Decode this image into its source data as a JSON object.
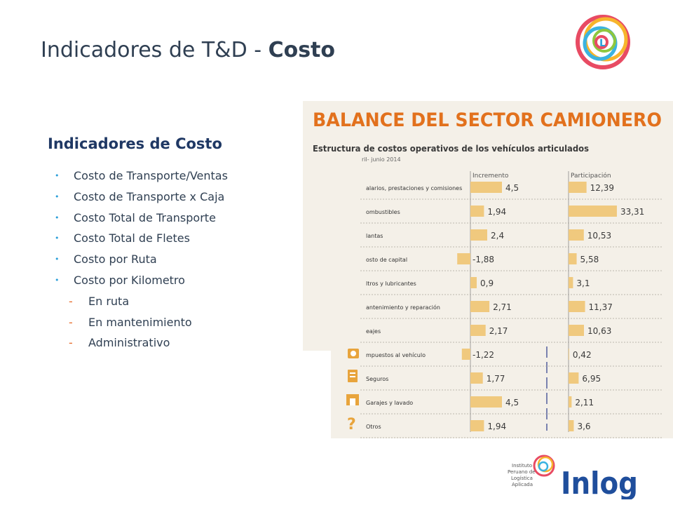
{
  "slide": {
    "title_regular": "Indicadores de T&D - ",
    "title_bold": "Costo",
    "section_heading": "Indicadores de Costo",
    "bullets": [
      {
        "level": 1,
        "text": "Costo de Transporte/Ventas"
      },
      {
        "level": 1,
        "text": "Costo de Transporte x Caja"
      },
      {
        "level": 1,
        "text": "Costo Total de Transporte"
      },
      {
        "level": 1,
        "text": "Costo Total de Fletes"
      },
      {
        "level": 1,
        "text": "Costo por Ruta"
      },
      {
        "level": 1,
        "text": "Costo por Kilometro"
      },
      {
        "level": 2,
        "text": "En ruta"
      },
      {
        "level": 2,
        "text": "En mantenimiento"
      },
      {
        "level": 2,
        "text": "Administrativo"
      }
    ],
    "bullet_glyph": "•",
    "sub_bullet_glyph": "-"
  },
  "chart_data": {
    "type": "bar",
    "title": "BALANCE DEL SECTOR CAMIONERO",
    "subtitle": "Estructura de costos operativos de los vehículos articulados",
    "period": "ril- junio 2014",
    "categories": [
      "alarios, prestaciones y comisiones",
      "ombustibles",
      "lantas",
      "osto de capital",
      "ltros y lubricantes",
      "antenimiento y reparación",
      "eajes",
      "mpuestos al vehículo",
      "Seguros",
      "Garajes y lavado",
      "Otros"
    ],
    "series": [
      {
        "name": "Incremento",
        "values": [
          4.5,
          1.94,
          2.4,
          -1.88,
          0.9,
          2.71,
          2.17,
          -1.22,
          1.77,
          4.5,
          1.94
        ],
        "labels": [
          "4,5",
          "1,94",
          "2,4",
          "-1,88",
          "0,9",
          "2,71",
          "2,17",
          "-1,22",
          "1,77",
          "4,5",
          "1,94"
        ]
      },
      {
        "name": "Participación",
        "values": [
          12.39,
          33.31,
          10.53,
          5.58,
          3.1,
          11.37,
          10.63,
          0.42,
          6.95,
          2.11,
          3.6
        ],
        "labels": [
          "12,39",
          "33,31",
          "10,53",
          "5,58",
          "3,1",
          "11,37",
          "10,63",
          "0,42",
          "6,95",
          "2,11",
          "3,6"
        ]
      }
    ],
    "icon_names": [
      "tax-icon",
      "insurance-icon",
      "garage-icon",
      "question-icon"
    ],
    "bar_color": "#f0c97e",
    "title_color": "#e2711d"
  },
  "footer": {
    "logo_text": "Inlog",
    "logo_subtext": [
      "Instituto",
      "Peruano de",
      "Logística",
      "Aplicada"
    ]
  },
  "colors": {
    "title": "#2f3f52",
    "heading": "#1f3864",
    "bullet": "#2c9fd9",
    "sub_bullet": "#e86c2b",
    "logo_blue": "#1f4e9c"
  }
}
